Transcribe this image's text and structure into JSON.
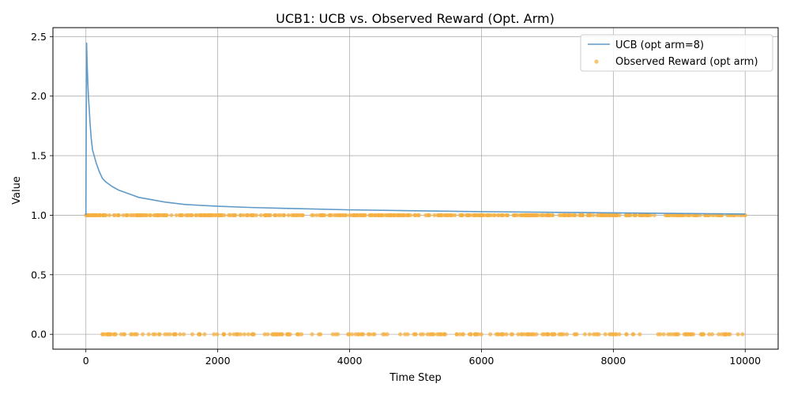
{
  "chart_data": {
    "type": "line",
    "title": "UCB1: UCB vs. Observed Reward (Opt. Arm)",
    "xlabel": "Time Step",
    "ylabel": "Value",
    "xlim": [
      -500,
      10500
    ],
    "ylim": [
      -0.125,
      2.575
    ],
    "x_ticks": [
      0,
      2000,
      4000,
      6000,
      8000,
      10000
    ],
    "x_tick_labels": [
      "0",
      "2000",
      "4000",
      "6000",
      "8000",
      "10000"
    ],
    "y_ticks": [
      0.0,
      0.5,
      1.0,
      1.5,
      2.0,
      2.5
    ],
    "y_tick_labels": [
      "0.0",
      "0.5",
      "1.0",
      "1.5",
      "2.0",
      "2.5"
    ],
    "grid": true,
    "legend_position": "top-right",
    "series": [
      {
        "name": "UCB (opt arm=8)",
        "kind": "line",
        "color": "#5f9ac8",
        "x": [
          0,
          10,
          20,
          30,
          40,
          50,
          60,
          70,
          80,
          90,
          100,
          120,
          150,
          200,
          250,
          300,
          400,
          500,
          600,
          700,
          800,
          1000,
          1200,
          1500,
          2000,
          2500,
          3000,
          4000,
          5000,
          6000,
          7000,
          8000,
          9000,
          10000
        ],
        "y": [
          1.0,
          2.45,
          2.25,
          2.1,
          1.98,
          1.9,
          1.8,
          1.72,
          1.65,
          1.6,
          1.55,
          1.51,
          1.45,
          1.37,
          1.31,
          1.28,
          1.24,
          1.21,
          1.19,
          1.17,
          1.15,
          1.13,
          1.11,
          1.09,
          1.075,
          1.065,
          1.058,
          1.045,
          1.037,
          1.03,
          1.025,
          1.02,
          1.015,
          1.01
        ]
      },
      {
        "name": "Observed Reward (opt arm)",
        "kind": "scatter",
        "color": "#f5b041",
        "values": [
          0,
          1
        ]
      }
    ]
  }
}
